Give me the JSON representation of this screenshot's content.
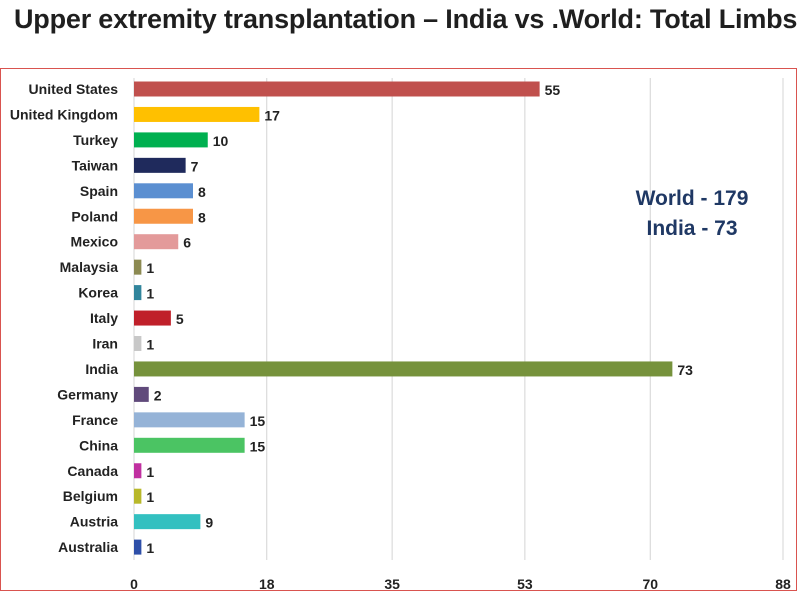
{
  "title": "Upper extremity transplantation – India vs .World: Total Limbs",
  "annotation": {
    "line1": "World - 179",
    "line2": "India - 73"
  },
  "chart_data": {
    "type": "bar",
    "orientation": "horizontal",
    "title": "Upper extremity transplantation – India vs .World: Total Limbs",
    "categories": [
      "United States",
      "United Kingdom",
      "Turkey",
      "Taiwan",
      "Spain",
      "Poland",
      "Mexico",
      "Malaysia",
      "Korea",
      "Italy",
      "Iran",
      "India",
      "Germany",
      "France",
      "China",
      "Canada",
      "Belgium",
      "Austria",
      "Australia"
    ],
    "values": [
      55,
      17,
      10,
      7,
      8,
      8,
      6,
      1,
      1,
      5,
      1,
      73,
      2,
      15,
      15,
      1,
      1,
      9,
      1
    ],
    "colors": [
      "#c0504d",
      "#ffc000",
      "#00b050",
      "#1f2a5c",
      "#5b8fd1",
      "#f79646",
      "#e39a9a",
      "#8c8a52",
      "#31859c",
      "#c0202a",
      "#c8c8c8",
      "#76923c",
      "#604a7b",
      "#95b3d7",
      "#4bc463",
      "#c030a0",
      "#b8b82a",
      "#33c0c0",
      "#2e4fa8"
    ],
    "xticks": [
      "0",
      "18",
      "35",
      "53",
      "70",
      "88"
    ],
    "xlim": [
      0,
      88
    ],
    "grid": true,
    "xlabel": "",
    "ylabel": ""
  }
}
